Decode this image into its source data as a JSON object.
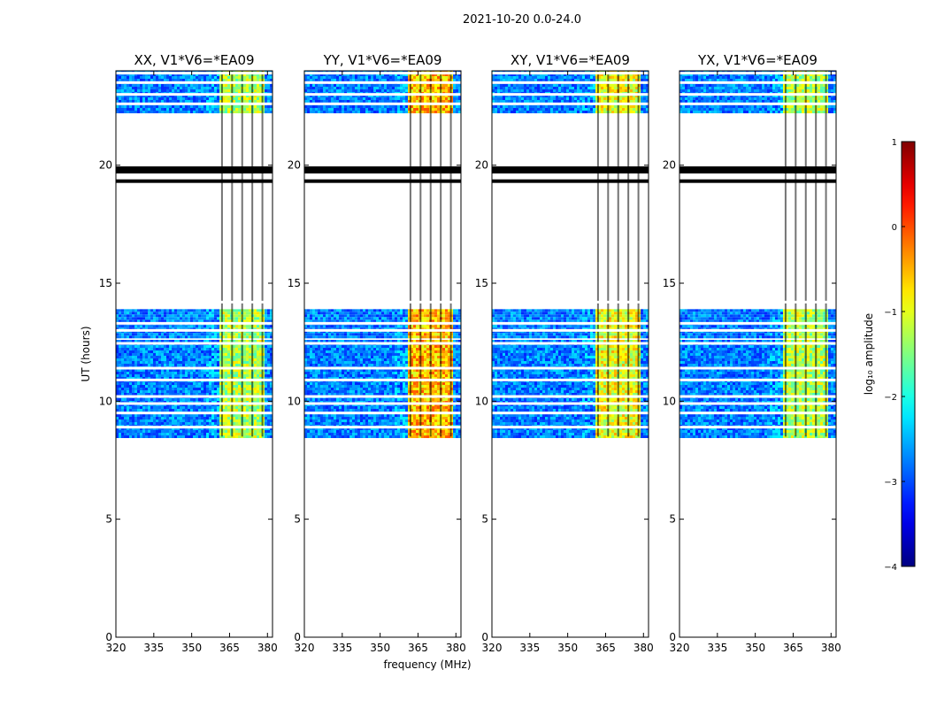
{
  "chart_data": {
    "type": "heatmap",
    "suptitle": "2021-10-20 0.0-24.0",
    "xlabel": "frequency (MHz)",
    "ylabel": "UT (hours)",
    "xlim": [
      320,
      382
    ],
    "ylim": [
      0,
      24
    ],
    "xticks": [
      320,
      335,
      350,
      365,
      380
    ],
    "xtick_labels": [
      "320",
      "335",
      "350",
      "365",
      "380"
    ],
    "yticks": [
      0,
      5,
      10,
      15,
      20
    ],
    "ytick_labels": [
      "0",
      "5",
      "10",
      "15",
      "20"
    ],
    "colorbar": {
      "label": "log₁₀ amplitude",
      "range": [
        -4,
        1
      ],
      "ticks": [
        1,
        0,
        -1,
        -2,
        -3,
        -4
      ],
      "tick_labels": [
        "1",
        "0",
        "−1",
        "−2",
        "−3",
        "−4"
      ],
      "colormap": "jet"
    },
    "panels": [
      {
        "title": "XX, V1*V6=*EA09",
        "rfi_band_mhz": [
          360,
          378
        ],
        "rfi_level": -1.0
      },
      {
        "title": "YY, V1*V6=*EA09",
        "rfi_band_mhz": [
          360,
          378
        ],
        "rfi_level": -0.3
      },
      {
        "title": "XY, V1*V6=*EA09",
        "rfi_band_mhz": [
          360,
          378
        ],
        "rfi_level": -0.7
      },
      {
        "title": "YX, V1*V6=*EA09",
        "rfi_band_mhz": [
          360,
          378
        ],
        "rfi_level": -1.0
      }
    ],
    "data_time_ranges_hours": [
      [
        8.5,
        12.6
      ],
      [
        12.7,
        13.9
      ],
      [
        22.2,
        24.0
      ]
    ],
    "flag_lines_hours": [
      8.9,
      9.5,
      9.9,
      10.2,
      10.9,
      11.4,
      12.45,
      13.0,
      13.3,
      14.2,
      22.6,
      23.0,
      23.5,
      23.9
    ],
    "channel_gap_mhz": [
      362,
      366,
      370,
      374,
      378
    ],
    "black_band_hours": [
      [
        19.65,
        19.95
      ],
      [
        19.25,
        19.4
      ]
    ]
  }
}
